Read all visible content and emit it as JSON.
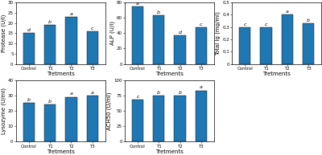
{
  "chart_data": [
    {
      "type": "bar",
      "x_label": "Tretments",
      "y_label": "Protease (U/l)",
      "categories": [
        "Control",
        "T1",
        "T2",
        "T3"
      ],
      "values": [
        15,
        19,
        23,
        16
      ],
      "annotations": [
        "d",
        "b",
        "a",
        "c"
      ],
      "ylim": [
        0,
        30
      ],
      "yticks": [
        0,
        5,
        10,
        15,
        20,
        25,
        30
      ]
    },
    {
      "type": "bar",
      "x_label": "Tretments",
      "y_label": "ALP (U/l)",
      "categories": [
        "Control",
        "T1",
        "T2",
        "T3"
      ],
      "values": [
        75,
        63,
        37,
        48
      ],
      "annotations": [
        "a",
        "b",
        "d",
        "c"
      ],
      "ylim": [
        0,
        80
      ],
      "yticks": [
        0,
        20,
        40,
        60,
        80
      ]
    },
    {
      "type": "bar",
      "x_label": "Tretments",
      "y_label": "Total Ig (mg/ml)",
      "categories": [
        "Control",
        "T1",
        "T2",
        "T3"
      ],
      "values": [
        0.3,
        0.3,
        0.4,
        0.33
      ],
      "annotations": [
        "c",
        "c",
        "a",
        "b"
      ],
      "ylim": [
        0,
        0.5
      ],
      "yticks": [
        0,
        0.1,
        0.2,
        0.3,
        0.4,
        0.5
      ]
    },
    {
      "type": "bar",
      "x_label": "Tretments",
      "y_label": "Lysozyme (U/ml)",
      "categories": [
        "Control",
        "T1",
        "T2",
        "T3"
      ],
      "values": [
        25,
        24,
        29,
        30
      ],
      "annotations": [
        "b",
        "b",
        "a",
        "a"
      ],
      "ylim": [
        0,
        40
      ],
      "yticks": [
        0,
        10,
        20,
        30,
        40
      ]
    },
    {
      "type": "bar",
      "x_label": "Tretments",
      "y_label": "ACH50 (U/ml)",
      "categories": [
        "Control",
        "T1",
        "T2",
        "T3"
      ],
      "values": [
        68,
        75,
        74,
        83
      ],
      "annotations": [
        "c",
        "b",
        "b",
        "a"
      ],
      "ylim": [
        0,
        100
      ],
      "yticks": [
        0,
        25,
        50,
        75,
        100
      ]
    }
  ]
}
